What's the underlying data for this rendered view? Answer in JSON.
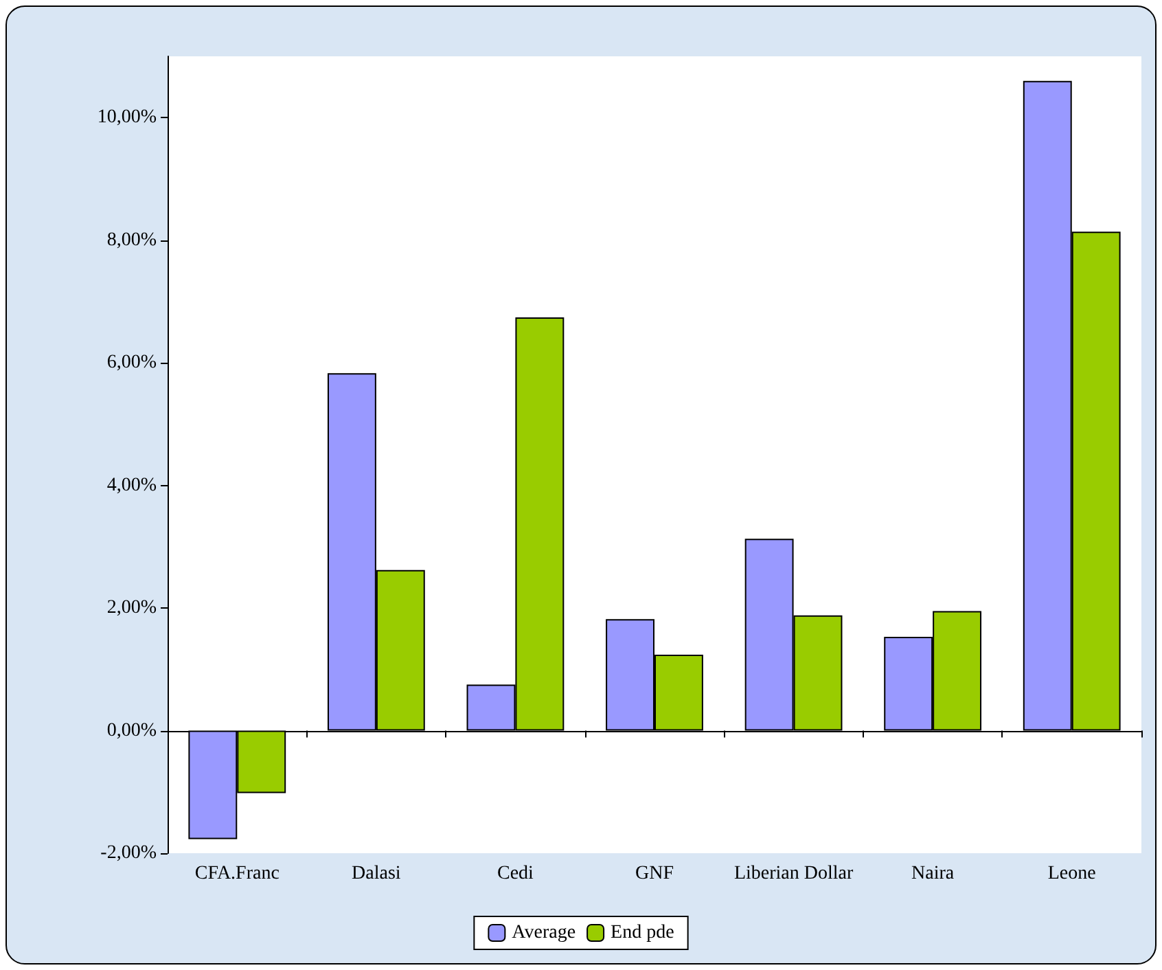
{
  "chart_data": {
    "type": "bar",
    "categories": [
      "CFA.Franc",
      "Dalasi",
      "Cedi",
      "GNF",
      "Liberian Dollar",
      "Naira",
      "Leone"
    ],
    "series": [
      {
        "name": "Average",
        "color": "#9999ff",
        "values": [
          -1.77,
          5.83,
          0.75,
          1.82,
          3.13,
          1.53,
          10.6
        ]
      },
      {
        "name": "End pde",
        "color": "#99cc00",
        "values": [
          -1.02,
          2.62,
          6.74,
          1.24,
          1.88,
          1.95,
          8.14
        ]
      }
    ],
    "ylim": [
      -2,
      11
    ],
    "yticks": [
      {
        "value": -2,
        "label": "-2,00%"
      },
      {
        "value": 0,
        "label": "0,00%"
      },
      {
        "value": 2,
        "label": "2,00%"
      },
      {
        "value": 4,
        "label": "4,00%"
      },
      {
        "value": 6,
        "label": "6,00%"
      },
      {
        "value": 8,
        "label": "8,00%"
      },
      {
        "value": 10,
        "label": "10,00%"
      }
    ],
    "legend": "bottom"
  }
}
